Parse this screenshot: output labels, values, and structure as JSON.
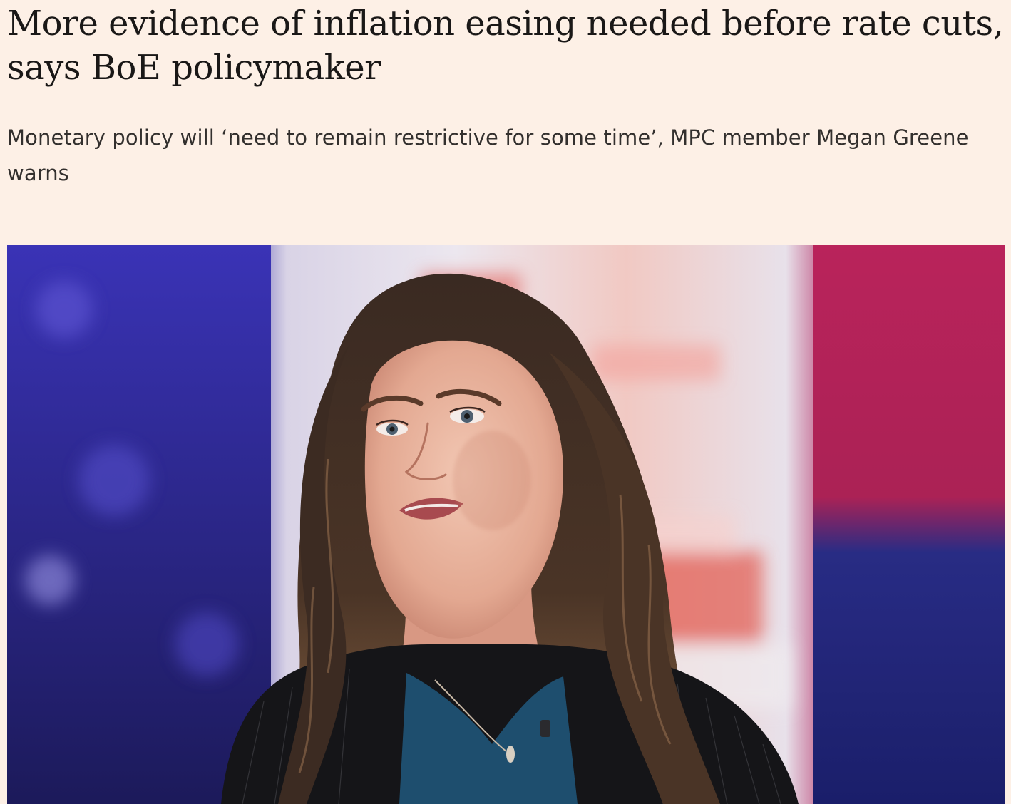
{
  "article": {
    "headline": "More evidence of inflation easing needed before rate cuts, says BoE policymaker",
    "standfirst": "Monetary policy will ‘need to remain restrictive for some time’, MPC member Megan Greene warns"
  },
  "colors": {
    "page_background": "#fdf0e6",
    "headline_text": "#1a1817",
    "standfirst_text": "#33302e"
  }
}
